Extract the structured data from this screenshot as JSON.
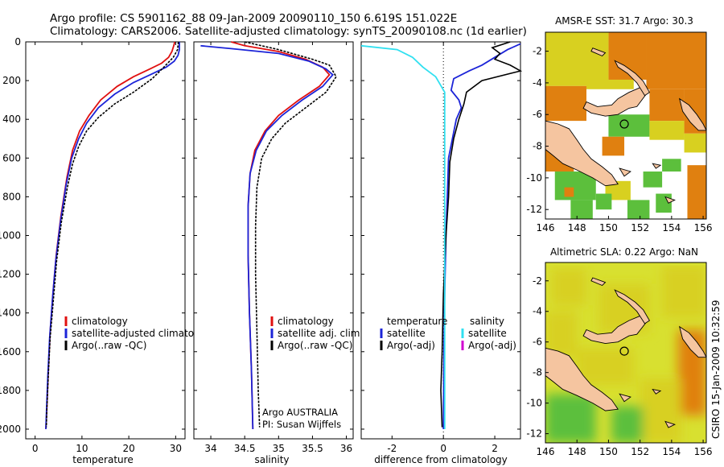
{
  "header": {
    "line1": "Argo profile: CS 5901162_88 09-Jan-2009 20090110_150 6.619S 151.022E",
    "line2": "Climatology: CARS2006. Satellite-adjusted climatology: synTS_20090108.nc (1d earlier)"
  },
  "side_label": "CSIRO 15-Jan-2009 10:32:59",
  "colors": {
    "climatology": "#e01010",
    "satellite": "#1c24d8",
    "argo": "#000000",
    "satellite_salinity": "#30e0f0",
    "argo_adj_salinity": "#d000d0",
    "land": "#f5c5a0",
    "map_green": "#5cbf3c",
    "map_yellow": "#d8d020",
    "map_orange": "#e08010"
  },
  "chart_data": [
    {
      "type": "line",
      "id": "temperature",
      "xlabel": "temperature",
      "ylabel": "",
      "xlim": [
        -2,
        32
      ],
      "ylim": [
        2050,
        0
      ],
      "xticks": [
        0,
        10,
        20,
        30
      ],
      "yticks": [
        0,
        200,
        400,
        600,
        800,
        1000,
        1200,
        1400,
        1600,
        1800,
        2000
      ],
      "legend": [
        "climatology",
        "satellite-adjusted climatology",
        "Argo(..raw -QC)"
      ],
      "legend_placement": "lower-right",
      "series": [
        {
          "name": "climatology",
          "color": "climatology",
          "points": [
            [
              29.8,
              0
            ],
            [
              29.6,
              20
            ],
            [
              29.2,
              50
            ],
            [
              28.5,
              80
            ],
            [
              27,
              110
            ],
            [
              24.5,
              140
            ],
            [
              21,
              180
            ],
            [
              17.5,
              230
            ],
            [
              14,
              300
            ],
            [
              11.5,
              380
            ],
            [
              9.5,
              460
            ],
            [
              8,
              560
            ],
            [
              6.8,
              700
            ],
            [
              5.5,
              900
            ],
            [
              4.5,
              1100
            ],
            [
              3.8,
              1300
            ],
            [
              3.2,
              1500
            ],
            [
              2.8,
              1700
            ],
            [
              2.5,
              1900
            ],
            [
              2.3,
              2000
            ]
          ]
        },
        {
          "name": "satellite-adjusted climatology",
          "color": "satellite",
          "points": [
            [
              30.8,
              0
            ],
            [
              30.8,
              40
            ],
            [
              30.5,
              70
            ],
            [
              29.7,
              100
            ],
            [
              28,
              130
            ],
            [
              25,
              165
            ],
            [
              21,
              210
            ],
            [
              17,
              270
            ],
            [
              13.5,
              340
            ],
            [
              11,
              420
            ],
            [
              9.3,
              500
            ],
            [
              7.8,
              600
            ],
            [
              6.6,
              740
            ],
            [
              5.4,
              930
            ],
            [
              4.4,
              1130
            ],
            [
              3.7,
              1330
            ],
            [
              3.1,
              1530
            ],
            [
              2.7,
              1730
            ],
            [
              2.4,
              1930
            ],
            [
              2.3,
              2000
            ]
          ]
        },
        {
          "name": "Argo(..raw -QC)",
          "color": "argo",
          "points": [
            [
              30.6,
              0
            ],
            [
              30.4,
              40
            ],
            [
              29.5,
              80
            ],
            [
              27.5,
              130
            ],
            [
              25,
              190
            ],
            [
              21,
              260
            ],
            [
              17,
              320
            ],
            [
              13.5,
              390
            ],
            [
              11,
              460
            ],
            [
              9.3,
              540
            ],
            [
              8,
              630
            ],
            [
              6.9,
              750
            ],
            [
              5.6,
              930
            ],
            [
              4.6,
              1130
            ],
            [
              3.9,
              1330
            ],
            [
              3.2,
              1530
            ],
            [
              2.8,
              1730
            ],
            [
              2.5,
              1900
            ],
            [
              2.4,
              1990
            ]
          ]
        }
      ]
    },
    {
      "type": "line",
      "id": "salinity",
      "xlabel": "salinity",
      "ylabel": "",
      "xlim": [
        33.75,
        36.1
      ],
      "ylim": [
        2050,
        0
      ],
      "xticks": [
        34,
        34.5,
        35,
        35.5,
        36
      ],
      "yticks": [
        0,
        200,
        400,
        600,
        800,
        1000,
        1200,
        1400,
        1600,
        1800,
        2000
      ],
      "legend": [
        "climatology",
        "satellite adj. clim.",
        "Argo(..raw -QC)"
      ],
      "legend_placement": "lower-right",
      "annotation": [
        "Argo AUSTRALIA",
        "PI: Susan Wijffels"
      ],
      "series": [
        {
          "name": "climatology",
          "color": "climatology",
          "points": [
            [
              34.3,
              0
            ],
            [
              34.5,
              20
            ],
            [
              35,
              50
            ],
            [
              35.4,
              90
            ],
            [
              35.65,
              130
            ],
            [
              35.75,
              170
            ],
            [
              35.6,
              230
            ],
            [
              35.3,
              300
            ],
            [
              35.0,
              380
            ],
            [
              34.8,
              460
            ],
            [
              34.65,
              560
            ],
            [
              34.58,
              680
            ],
            [
              34.55,
              850
            ],
            [
              34.55,
              1100
            ],
            [
              34.57,
              1400
            ],
            [
              34.6,
              1700
            ],
            [
              34.62,
              2000
            ]
          ]
        },
        {
          "name": "satellite adj. clim.",
          "color": "satellite",
          "points": [
            [
              33.85,
              20
            ],
            [
              34.3,
              35
            ],
            [
              35,
              60
            ],
            [
              35.45,
              100
            ],
            [
              35.7,
              140
            ],
            [
              35.8,
              170
            ],
            [
              35.65,
              230
            ],
            [
              35.35,
              300
            ],
            [
              35.05,
              380
            ],
            [
              34.82,
              460
            ],
            [
              34.67,
              560
            ],
            [
              34.58,
              680
            ],
            [
              34.55,
              850
            ],
            [
              34.55,
              1100
            ],
            [
              34.57,
              1400
            ],
            [
              34.6,
              1700
            ],
            [
              34.62,
              2000
            ]
          ]
        },
        {
          "name": "Argo(..raw -QC)",
          "color": "argo",
          "points": [
            [
              34.5,
              0
            ],
            [
              35,
              40
            ],
            [
              35.5,
              90
            ],
            [
              35.75,
              120
            ],
            [
              35.85,
              180
            ],
            [
              35.7,
              260
            ],
            [
              35.4,
              340
            ],
            [
              35.1,
              420
            ],
            [
              34.9,
              500
            ],
            [
              34.75,
              600
            ],
            [
              34.68,
              750
            ],
            [
              34.66,
              950
            ],
            [
              34.66,
              1200
            ],
            [
              34.68,
              1500
            ],
            [
              34.7,
              1800
            ],
            [
              34.72,
              1990
            ]
          ]
        }
      ]
    },
    {
      "type": "line",
      "id": "difference",
      "xlabel": "difference from climatology",
      "ylabel": "",
      "xlim": [
        -3.2,
        3
      ],
      "ylim": [
        2050,
        0
      ],
      "xticks": [
        -2,
        0,
        2
      ],
      "yticks": [
        0,
        200,
        400,
        600,
        800,
        1000,
        1200,
        1400,
        1600,
        1800,
        2000
      ],
      "legend_headers": [
        "temperature",
        "salinity"
      ],
      "legend": [
        "satellite",
        "Argo(-adj)",
        "satellite",
        "Argo(-adj)"
      ],
      "legend_placement": "lower-center",
      "series": [
        {
          "name": "satellite",
          "variable": "temperature",
          "color": "satellite",
          "points": [
            [
              3,
              10
            ],
            [
              2.5,
              40
            ],
            [
              2,
              80
            ],
            [
              1.5,
              120
            ],
            [
              1.0,
              150
            ],
            [
              0.4,
              190
            ],
            [
              0.3,
              250
            ],
            [
              0.6,
              300
            ],
            [
              0.7,
              340
            ],
            [
              0.5,
              400
            ],
            [
              0.35,
              500
            ],
            [
              0.2,
              600
            ],
            [
              0.15,
              800
            ],
            [
              0.1,
              1000
            ],
            [
              0.05,
              1300
            ],
            [
              0.02,
              1600
            ],
            [
              0.0,
              2000
            ]
          ]
        },
        {
          "name": "Argo(-adj)",
          "variable": "temperature",
          "color": "argo",
          "points": [
            [
              2.6,
              0
            ],
            [
              1.9,
              30
            ],
            [
              2.2,
              60
            ],
            [
              2.0,
              90
            ],
            [
              2.6,
              120
            ],
            [
              3,
              150
            ],
            [
              1.5,
              200
            ],
            [
              0.9,
              260
            ],
            [
              0.8,
              320
            ],
            [
              0.6,
              400
            ],
            [
              0.4,
              500
            ],
            [
              0.25,
              620
            ],
            [
              0.2,
              800
            ],
            [
              0.1,
              1000
            ],
            [
              0.0,
              1300
            ],
            [
              -0.05,
              1600
            ],
            [
              -0.1,
              1800
            ],
            [
              -0.05,
              1990
            ]
          ]
        },
        {
          "name": "satellite",
          "variable": "salinity",
          "color": "satellite_salinity",
          "points": [
            [
              -3.2,
              20
            ],
            [
              -1.8,
              40
            ],
            [
              -1.2,
              80
            ],
            [
              -0.8,
              130
            ],
            [
              -0.3,
              180
            ],
            [
              0.05,
              260
            ],
            [
              0.05,
              500
            ],
            [
              0.05,
              900
            ],
            [
              0.05,
              1500
            ],
            [
              0.05,
              2000
            ]
          ]
        }
      ]
    },
    {
      "type": "heatmap",
      "id": "sst_map",
      "title": "AMSR-E SST: 31.7 Argo: 30.3",
      "xlim": [
        146,
        156.2
      ],
      "ylim": [
        -12.6,
        -0.8
      ],
      "xticks": [
        146,
        148,
        150,
        152,
        154,
        156
      ],
      "yticks": [
        -2,
        -4,
        -6,
        -8,
        -10,
        -12
      ],
      "marker": [
        151.0,
        -6.6
      ]
    },
    {
      "type": "heatmap",
      "id": "sla_map",
      "title": "Altimetric SLA: 0.22 Argo: NaN",
      "xlim": [
        146,
        156.2
      ],
      "ylim": [
        -12.6,
        -0.8
      ],
      "xticks": [
        146,
        148,
        150,
        152,
        154,
        156
      ],
      "yticks": [
        -2,
        -4,
        -6,
        -8,
        -10,
        -12
      ],
      "marker": [
        151.0,
        -6.6
      ]
    }
  ]
}
